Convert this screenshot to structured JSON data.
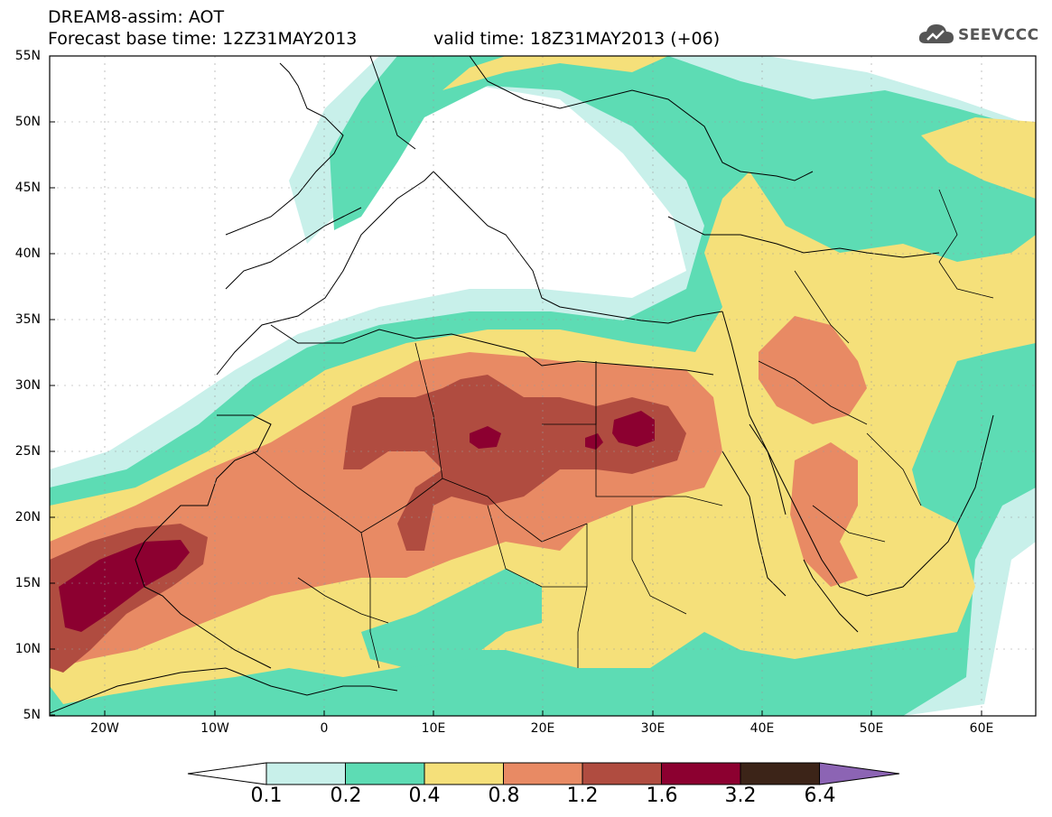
{
  "header": {
    "title": "DREAM8-assim: AOT",
    "base_time": "Forecast base time: 12Z31MAY2013",
    "valid_time": "valid time: 18Z31MAY2013 (+06)",
    "logo_text": "SEEVCCC"
  },
  "axes": {
    "lat_labels": [
      "55N",
      "50N",
      "45N",
      "40N",
      "35N",
      "30N",
      "25N",
      "20N",
      "15N",
      "10N",
      "5N"
    ],
    "lon_labels": [
      "20W",
      "10W",
      "0",
      "10E",
      "20E",
      "30E",
      "40E",
      "50E",
      "60E"
    ]
  },
  "colorbar": {
    "labels": [
      "0.1",
      "0.2",
      "0.4",
      "0.8",
      "1.2",
      "1.6",
      "3.2",
      "6.4"
    ],
    "colors": [
      "#c8f0ea",
      "#5ddcb4",
      "#f5e07a",
      "#e88a64",
      "#b04c40",
      "#8c0030",
      "#3c2418",
      "#8c64b4"
    ]
  },
  "map_colors": {
    "land_outline": "#000000",
    "background": "#ffffff"
  }
}
